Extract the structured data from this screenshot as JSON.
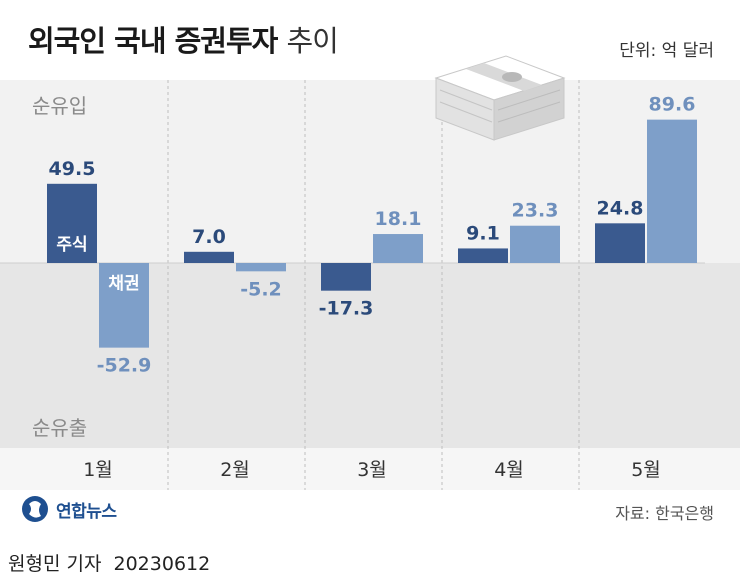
{
  "title": {
    "main": "외국인 국내 증권투자",
    "sub": "추이"
  },
  "unit": "단위: 억 달러",
  "labels": {
    "inflow": "순유입",
    "outflow": "순유출"
  },
  "source": "자료: 한국은행",
  "logo": "연합뉴스",
  "credit": {
    "author": "원형민 기자",
    "date": "20230612"
  },
  "colors": {
    "stock": "#3a5a8f",
    "bond": "#7e9fc9",
    "bg_top": "#f2f2f2",
    "bg_bottom": "#e6e6e6",
    "value_text": "#2b4a7a",
    "bond_text": "#6f90bd"
  },
  "chart_data": {
    "type": "bar",
    "categories": [
      "1월",
      "2월",
      "3월",
      "4월",
      "5월"
    ],
    "series": [
      {
        "name": "주식",
        "values": [
          49.5,
          7.0,
          -17.3,
          9.1,
          24.8
        ]
      },
      {
        "name": "채권",
        "values": [
          -52.9,
          -5.2,
          18.1,
          23.3,
          89.6
        ]
      }
    ],
    "value_labels": {
      "주식": [
        "49.5",
        "7.0",
        "-17.3",
        "9.1",
        "24.8"
      ],
      "채권": [
        "-52.9",
        "-5.2",
        "18.1",
        "23.3",
        "89.6"
      ]
    },
    "title": "외국인 국내 증권투자 추이",
    "ylabel": "억 달러",
    "ylim": [
      -127,
      127
    ]
  }
}
